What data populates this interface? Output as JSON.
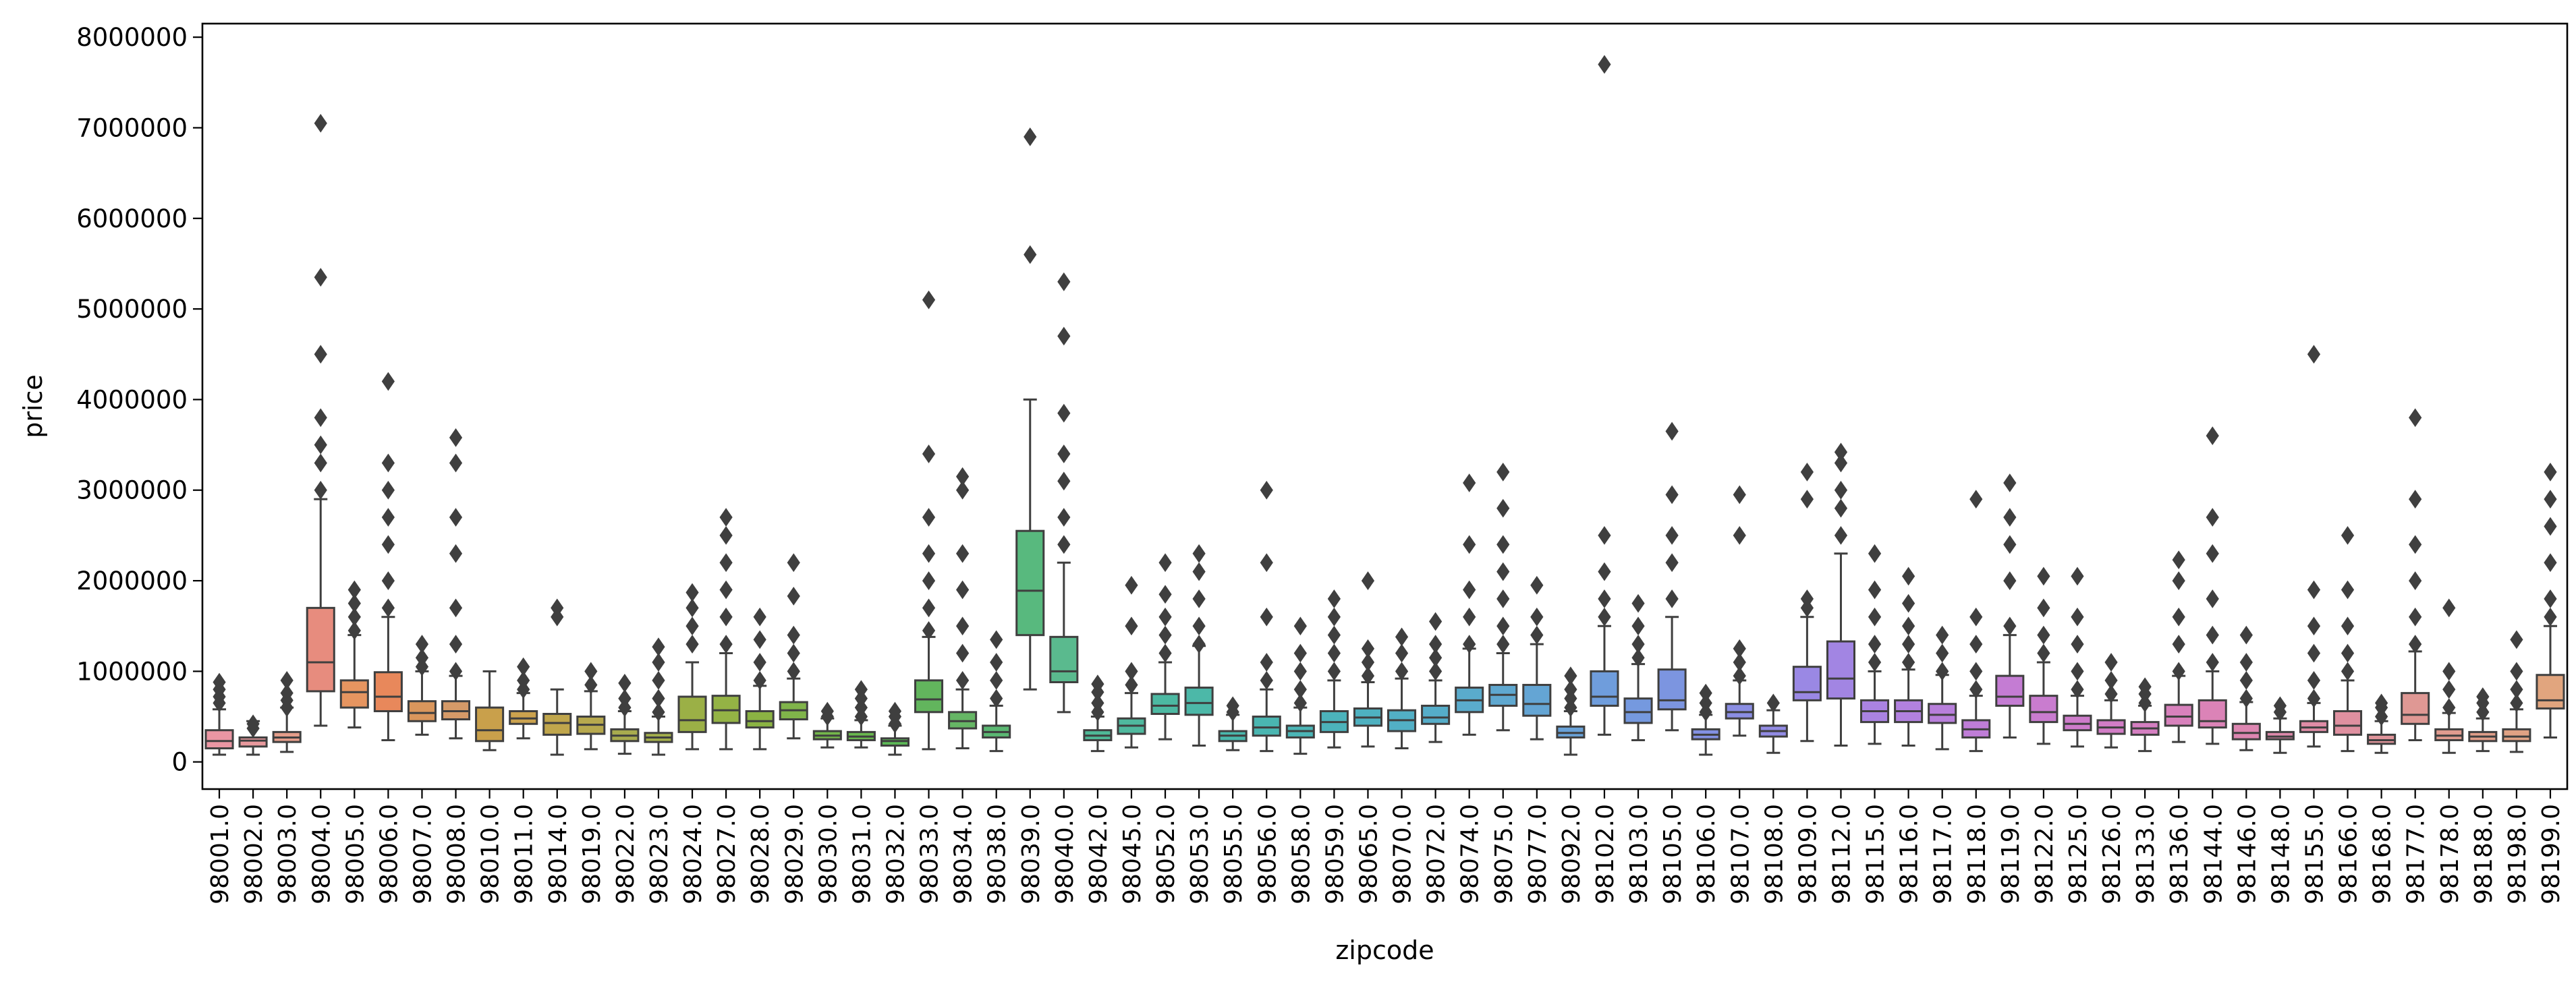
{
  "chart_data": {
    "type": "box",
    "xlabel": "zipcode",
    "ylabel": "price",
    "ylim": [
      -300000,
      8150000
    ],
    "yticks": [
      0,
      1000000,
      2000000,
      3000000,
      4000000,
      5000000,
      6000000,
      7000000,
      8000000
    ],
    "ytick_labels": [
      "0",
      "1000000",
      "2000000",
      "3000000",
      "4000000",
      "5000000",
      "6000000",
      "7000000",
      "8000000"
    ],
    "categories": [
      "98001.0",
      "98002.0",
      "98003.0",
      "98004.0",
      "98005.0",
      "98006.0",
      "98007.0",
      "98008.0",
      "98010.0",
      "98011.0",
      "98014.0",
      "98019.0",
      "98022.0",
      "98023.0",
      "98024.0",
      "98027.0",
      "98028.0",
      "98029.0",
      "98030.0",
      "98031.0",
      "98032.0",
      "98033.0",
      "98034.0",
      "98038.0",
      "98039.0",
      "98040.0",
      "98042.0",
      "98045.0",
      "98052.0",
      "98053.0",
      "98055.0",
      "98056.0",
      "98058.0",
      "98059.0",
      "98065.0",
      "98070.0",
      "98072.0",
      "98074.0",
      "98075.0",
      "98077.0",
      "98092.0",
      "98102.0",
      "98103.0",
      "98105.0",
      "98106.0",
      "98107.0",
      "98108.0",
      "98109.0",
      "98112.0",
      "98115.0",
      "98116.0",
      "98117.0",
      "98118.0",
      "98119.0",
      "98122.0",
      "98125.0",
      "98126.0",
      "98133.0",
      "98136.0",
      "98144.0",
      "98146.0",
      "98148.0",
      "98155.0",
      "98166.0",
      "98168.0",
      "98177.0",
      "98178.0",
      "98188.0",
      "98198.0",
      "98199.0"
    ],
    "colors": [
      "#ea96a3",
      "#e8999d",
      "#e49d8a",
      "#e78c7e",
      "#e69560",
      "#e8885b",
      "#d9965c",
      "#d59a68",
      "#c9a04b",
      "#cba24e",
      "#c0a64c",
      "#b7a94e",
      "#a8ab4e",
      "#a3ae4c",
      "#9bb046",
      "#94b345",
      "#8bb343",
      "#80b44a",
      "#74b64b",
      "#69b84e",
      "#5cb856",
      "#62b55d",
      "#66b665",
      "#5ab772",
      "#58b97e",
      "#5aba8e",
      "#4fb997",
      "#4fb99e",
      "#4cb9a2",
      "#4cb8a8",
      "#4ab8ad",
      "#4ab6b1",
      "#4bb5b6",
      "#4cb3bb",
      "#4eb1c0",
      "#52afc5",
      "#55adc9",
      "#5aabcc",
      "#5fa8d0",
      "#64a5d4",
      "#69a2d8",
      "#6f9ddc",
      "#7599df",
      "#7c95e0",
      "#8391e2",
      "#8b8ee3",
      "#928be4",
      "#9a88e4",
      "#a285e3",
      "#aa83e2",
      "#b281df",
      "#b87fdb",
      "#bf7dd7",
      "#c47cd3",
      "#c97ccf",
      "#ce7ccb",
      "#d27dc6",
      "#d57fc1",
      "#d881bc",
      "#db83b7",
      "#dd86b1",
      "#de89ab",
      "#df8ca6",
      "#df90a0",
      "#df949a",
      "#df9894",
      "#e09b8f",
      "#e09e89",
      "#e0a284",
      "#e1a57e"
    ],
    "series": [
      {
        "stats": [
          [
            80000,
            150000,
            230000,
            350000,
            580000
          ],
          [
            80000,
            170000,
            235000,
            270000,
            450000
          ],
          [
            110000,
            220000,
            270000,
            330000,
            600000
          ],
          [
            400000,
            780000,
            1100000,
            1700000,
            2900000
          ],
          [
            380000,
            600000,
            770000,
            900000,
            1400000
          ],
          [
            240000,
            560000,
            720000,
            990000,
            1600000
          ],
          [
            300000,
            450000,
            540000,
            670000,
            1000000
          ],
          [
            260000,
            470000,
            560000,
            670000,
            950000
          ],
          [
            130000,
            230000,
            350000,
            600000,
            1000000
          ],
          [
            260000,
            420000,
            480000,
            560000,
            760000
          ],
          [
            80000,
            300000,
            430000,
            530000,
            800000
          ],
          [
            140000,
            310000,
            410000,
            500000,
            780000
          ],
          [
            90000,
            230000,
            290000,
            360000,
            560000
          ],
          [
            80000,
            220000,
            270000,
            320000,
            500000
          ],
          [
            140000,
            330000,
            460000,
            720000,
            1100000
          ],
          [
            140000,
            430000,
            570000,
            730000,
            1200000
          ],
          [
            140000,
            380000,
            450000,
            560000,
            840000
          ],
          [
            260000,
            470000,
            570000,
            660000,
            920000
          ],
          [
            160000,
            250000,
            290000,
            340000,
            480000
          ],
          [
            160000,
            240000,
            280000,
            330000,
            460000
          ],
          [
            80000,
            180000,
            230000,
            260000,
            400000
          ],
          [
            140000,
            550000,
            690000,
            900000,
            1380000
          ],
          [
            150000,
            370000,
            450000,
            550000,
            800000
          ],
          [
            120000,
            270000,
            330000,
            400000,
            620000
          ],
          [
            800000,
            1400000,
            1890000,
            2550000,
            4000000
          ],
          [
            550000,
            880000,
            1000000,
            1380000,
            2200000
          ],
          [
            120000,
            240000,
            290000,
            350000,
            500000
          ],
          [
            160000,
            310000,
            400000,
            480000,
            760000
          ],
          [
            250000,
            530000,
            620000,
            750000,
            1100000
          ],
          [
            180000,
            520000,
            650000,
            820000,
            1280000
          ],
          [
            130000,
            230000,
            290000,
            340000,
            520000
          ],
          [
            120000,
            290000,
            380000,
            500000,
            800000
          ],
          [
            90000,
            270000,
            340000,
            400000,
            600000
          ],
          [
            160000,
            330000,
            440000,
            560000,
            900000
          ],
          [
            170000,
            400000,
            490000,
            590000,
            880000
          ],
          [
            150000,
            340000,
            460000,
            570000,
            920000
          ],
          [
            220000,
            420000,
            490000,
            620000,
            900000
          ],
          [
            300000,
            550000,
            680000,
            820000,
            1250000
          ],
          [
            350000,
            620000,
            740000,
            850000,
            1200000
          ],
          [
            250000,
            510000,
            640000,
            850000,
            1300000
          ],
          [
            80000,
            270000,
            320000,
            390000,
            560000
          ],
          [
            300000,
            620000,
            720000,
            1000000,
            1500000
          ],
          [
            240000,
            430000,
            550000,
            700000,
            1080000
          ],
          [
            350000,
            580000,
            680000,
            1020000,
            1600000
          ],
          [
            80000,
            250000,
            300000,
            360000,
            520000
          ],
          [
            290000,
            480000,
            550000,
            640000,
            900000
          ],
          [
            100000,
            280000,
            340000,
            400000,
            570000
          ],
          [
            230000,
            680000,
            770000,
            1050000,
            1600000
          ],
          [
            180000,
            700000,
            920000,
            1330000,
            2300000
          ],
          [
            200000,
            440000,
            560000,
            680000,
            1000000
          ],
          [
            180000,
            440000,
            560000,
            680000,
            1020000
          ],
          [
            140000,
            430000,
            520000,
            640000,
            960000
          ],
          [
            120000,
            270000,
            360000,
            460000,
            730000
          ],
          [
            270000,
            620000,
            720000,
            950000,
            1400000
          ],
          [
            200000,
            440000,
            550000,
            730000,
            1100000
          ],
          [
            170000,
            350000,
            420000,
            510000,
            730000
          ],
          [
            160000,
            310000,
            380000,
            460000,
            680000
          ],
          [
            120000,
            300000,
            370000,
            440000,
            620000
          ],
          [
            220000,
            400000,
            500000,
            630000,
            950000
          ],
          [
            200000,
            380000,
            450000,
            680000,
            1000000
          ],
          [
            130000,
            250000,
            320000,
            420000,
            660000
          ],
          [
            100000,
            250000,
            280000,
            330000,
            480000
          ],
          [
            170000,
            330000,
            380000,
            450000,
            650000
          ],
          [
            120000,
            300000,
            400000,
            560000,
            900000
          ],
          [
            100000,
            200000,
            240000,
            300000,
            450000
          ],
          [
            240000,
            420000,
            520000,
            760000,
            1220000
          ],
          [
            100000,
            240000,
            290000,
            360000,
            540000
          ],
          [
            120000,
            230000,
            280000,
            330000,
            480000
          ],
          [
            110000,
            230000,
            280000,
            360000,
            580000
          ],
          [
            270000,
            590000,
            680000,
            960000,
            1500000
          ]
        ],
        "outliers": [
          [
            650000,
            720000,
            800000,
            880000
          ],
          [
            370000,
            420000
          ],
          [
            600000,
            680000,
            760000,
            900000
          ],
          [
            3000000,
            3300000,
            3500000,
            3800000,
            4500000,
            5350000,
            7050000
          ],
          [
            1450000,
            1600000,
            1750000,
            1900000
          ],
          [
            1700000,
            2000000,
            2400000,
            2700000,
            3000000,
            3300000,
            4200000
          ],
          [
            1050000,
            1150000,
            1300000
          ],
          [
            1000000,
            1300000,
            1700000,
            2300000,
            2700000,
            3300000,
            3580000
          ],
          [],
          [
            800000,
            900000,
            1050000
          ],
          [
            1600000,
            1700000
          ],
          [
            850000,
            1000000
          ],
          [
            600000,
            700000,
            870000
          ],
          [
            550000,
            700000,
            900000,
            1100000,
            1270000
          ],
          [
            1300000,
            1500000,
            1700000,
            1870000
          ],
          [
            1300000,
            1600000,
            1900000,
            2200000,
            2500000,
            2700000
          ],
          [
            900000,
            1100000,
            1350000,
            1600000
          ],
          [
            1000000,
            1200000,
            1400000,
            1830000,
            2200000
          ],
          [
            500000,
            560000
          ],
          [
            500000,
            600000,
            700000,
            800000
          ],
          [
            420000,
            500000,
            560000
          ],
          [
            1450000,
            1700000,
            2000000,
            2300000,
            2700000,
            3400000,
            5100000
          ],
          [
            900000,
            1200000,
            1500000,
            1900000,
            2300000,
            3000000,
            3150000
          ],
          [
            700000,
            900000,
            1100000,
            1350000
          ],
          [
            5600000,
            6900000
          ],
          [
            2400000,
            2700000,
            3100000,
            3400000,
            3850000,
            4700000,
            5300000
          ],
          [
            550000,
            650000,
            770000,
            860000
          ],
          [
            850000,
            1000000,
            1500000,
            1950000
          ],
          [
            1200000,
            1400000,
            1600000,
            1850000,
            2200000
          ],
          [
            1300000,
            1500000,
            1800000,
            2100000,
            2300000
          ],
          [
            550000,
            620000
          ],
          [
            900000,
            1100000,
            1600000,
            2200000,
            3000000
          ],
          [
            650000,
            800000,
            1000000,
            1200000,
            1500000
          ],
          [
            1000000,
            1200000,
            1400000,
            1600000,
            1800000
          ],
          [
            950000,
            1100000,
            1250000,
            2000000
          ],
          [
            1000000,
            1200000,
            1380000
          ],
          [
            1000000,
            1150000,
            1300000,
            1550000
          ],
          [
            1300000,
            1600000,
            1900000,
            2400000,
            3080000
          ],
          [
            1300000,
            1500000,
            1800000,
            2100000,
            2400000,
            2800000,
            3200000
          ],
          [
            1400000,
            1600000,
            1950000
          ],
          [
            600000,
            700000,
            800000,
            950000
          ],
          [
            1600000,
            1800000,
            2100000,
            2500000,
            7700000
          ],
          [
            1150000,
            1300000,
            1500000,
            1750000
          ],
          [
            1800000,
            2200000,
            2500000,
            2950000,
            3650000
          ],
          [
            550000,
            650000,
            760000
          ],
          [
            950000,
            1100000,
            1250000,
            2500000,
            2950000
          ],
          [
            650000
          ],
          [
            1700000,
            1800000,
            2900000,
            3200000
          ],
          [
            2500000,
            2800000,
            3000000,
            3300000,
            3420000
          ],
          [
            1100000,
            1300000,
            1600000,
            1900000,
            2300000
          ],
          [
            1100000,
            1300000,
            1500000,
            1750000,
            2050000
          ],
          [
            1000000,
            1200000,
            1400000
          ],
          [
            800000,
            1000000,
            1300000,
            1600000,
            2900000
          ],
          [
            1500000,
            2000000,
            2400000,
            2700000,
            3080000
          ],
          [
            1200000,
            1400000,
            1700000,
            2050000
          ],
          [
            800000,
            1000000,
            1300000,
            1600000,
            2050000
          ],
          [
            750000,
            900000,
            1100000
          ],
          [
            650000,
            750000,
            830000
          ],
          [
            1000000,
            1300000,
            1600000,
            2000000,
            2230000
          ],
          [
            1100000,
            1400000,
            1800000,
            2300000,
            2700000,
            3600000
          ],
          [
            700000,
            900000,
            1100000,
            1400000
          ],
          [
            550000,
            620000
          ],
          [
            700000,
            900000,
            1200000,
            1500000,
            1900000,
            4500000
          ],
          [
            1000000,
            1200000,
            1500000,
            1900000,
            2500000
          ],
          [
            500000,
            600000,
            650000
          ],
          [
            1300000,
            1600000,
            2000000,
            2400000,
            2900000,
            3800000
          ],
          [
            600000,
            800000,
            1000000,
            1700000
          ],
          [
            550000,
            650000,
            720000
          ],
          [
            650000,
            800000,
            1000000,
            1350000
          ],
          [
            1600000,
            1800000,
            2200000,
            2600000,
            2900000,
            3200000
          ]
        ]
      }
    ]
  }
}
